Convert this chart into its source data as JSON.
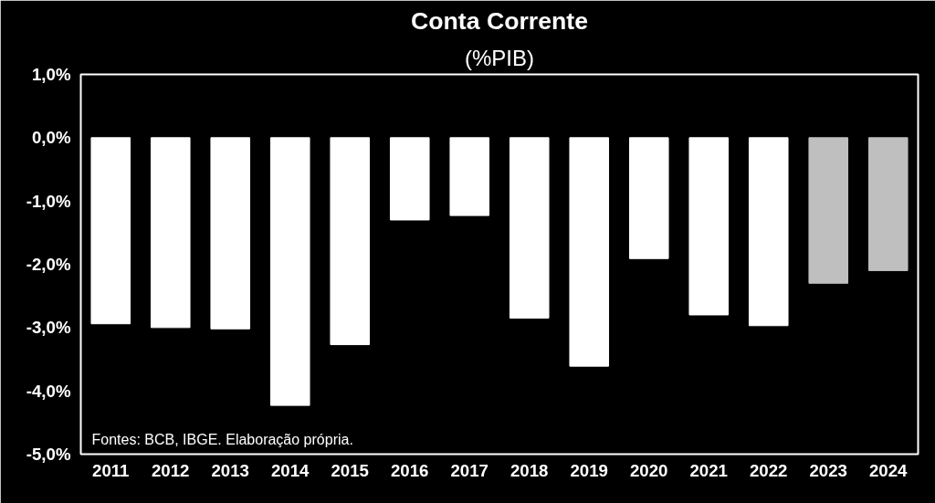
{
  "chart_data": {
    "type": "bar",
    "title": "Conta Corrente",
    "subtitle": "(%PIB)",
    "categories": [
      "2011",
      "2012",
      "2013",
      "2014",
      "2015",
      "2016",
      "2017",
      "2018",
      "2019",
      "2020",
      "2021",
      "2022",
      "2023",
      "2024"
    ],
    "values": [
      -2.94,
      -3.0,
      -3.02,
      -4.23,
      -3.27,
      -1.3,
      -1.23,
      -2.85,
      -3.61,
      -1.91,
      -2.8,
      -2.97,
      -2.3,
      -2.1
    ],
    "colors": [
      "#ffffff",
      "#ffffff",
      "#ffffff",
      "#ffffff",
      "#ffffff",
      "#ffffff",
      "#ffffff",
      "#ffffff",
      "#ffffff",
      "#ffffff",
      "#ffffff",
      "#ffffff",
      "#bfbfbf",
      "#bfbfbf"
    ],
    "ylim": [
      -5,
      1
    ],
    "yticks": [
      {
        "value": 1,
        "label": "1,0%"
      },
      {
        "value": 0,
        "label": "0,0%"
      },
      {
        "value": -1,
        "label": "-1,0%"
      },
      {
        "value": -2,
        "label": "-2,0%"
      },
      {
        "value": -3,
        "label": "-3,0%"
      },
      {
        "value": -4,
        "label": "-4,0%"
      },
      {
        "value": -5,
        "label": "-5,0%"
      }
    ],
    "grid": false,
    "annotations": [
      "Fontes: BCB, IBGE. Elaboração própria."
    ]
  }
}
